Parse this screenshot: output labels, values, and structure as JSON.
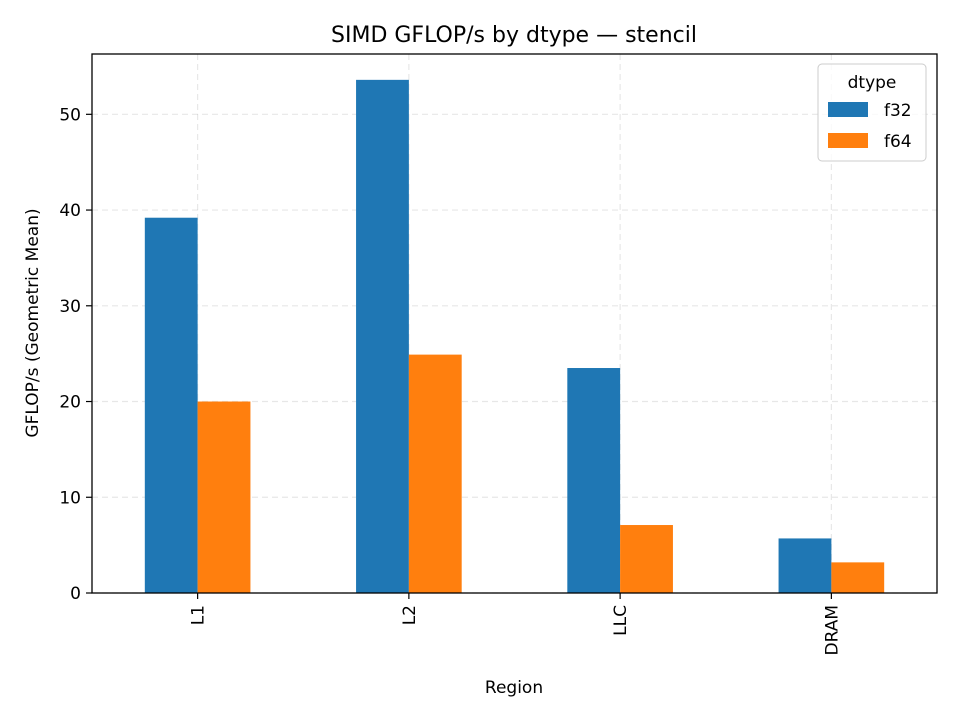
{
  "chart_data": {
    "type": "bar",
    "title": "SIMD GFLOP/s by dtype — stencil",
    "xlabel": "Region",
    "ylabel": "GFLOP/s (Geometric Mean)",
    "categories": [
      "L1",
      "L2",
      "LLC",
      "DRAM"
    ],
    "series": [
      {
        "name": "f32",
        "color": "#1f77b4",
        "values": [
          39.2,
          53.6,
          23.5,
          5.7
        ]
      },
      {
        "name": "f64",
        "color": "#ff7f0e",
        "values": [
          20.0,
          24.9,
          7.1,
          3.2
        ]
      }
    ],
    "ylim": [
      0,
      56.3
    ],
    "yticks": [
      0,
      10,
      20,
      30,
      40,
      50
    ],
    "grid": true,
    "legend": {
      "title": "dtype",
      "position": "top-right"
    }
  }
}
